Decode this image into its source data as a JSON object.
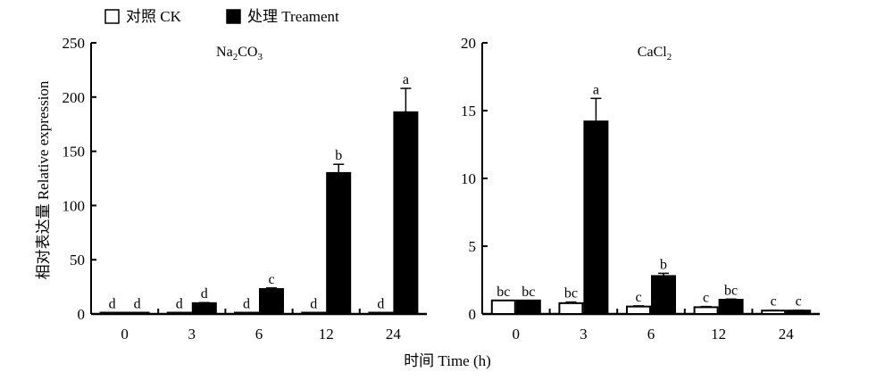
{
  "legend": [
    {
      "label": "对照 CK",
      "fill": "#ffffff"
    },
    {
      "label": "处理 Treament",
      "fill": "#000000"
    }
  ],
  "xlabel": "时间 Time (h)",
  "ylabel": "相对表达量 Relative expression",
  "chart_data": [
    {
      "type": "bar",
      "title_base": "Na",
      "title_sub1": "2",
      "title_mid": "CO",
      "title_sub2": "3",
      "categories": [
        "0",
        "3",
        "6",
        "12",
        "24"
      ],
      "ylim": [
        0,
        250
      ],
      "yticks": [
        "0",
        "50",
        "100",
        "150",
        "200",
        "250"
      ],
      "series": [
        {
          "values": [
            1,
            1,
            1,
            1,
            1
          ],
          "errors": [
            0,
            0,
            0,
            0,
            0
          ],
          "letters": [
            "d",
            "d",
            "d",
            "d",
            "d"
          ]
        },
        {
          "values": [
            1,
            10,
            23,
            130,
            186
          ],
          "errors": [
            0,
            0.5,
            1,
            8,
            22
          ],
          "letters": [
            "d",
            "d",
            "c",
            "b",
            "a"
          ]
        }
      ]
    },
    {
      "type": "bar",
      "title_base": "CaCl",
      "title_sub1": "2",
      "title_mid": "",
      "title_sub2": "",
      "categories": [
        "0",
        "3",
        "6",
        "12",
        "24"
      ],
      "ylim": [
        0,
        20
      ],
      "yticks": [
        "0",
        "5",
        "10",
        "15",
        "20"
      ],
      "series": [
        {
          "values": [
            1.0,
            0.8,
            0.55,
            0.5,
            0.25
          ],
          "errors": [
            0,
            0.08,
            0.05,
            0.05,
            0.03
          ],
          "letters": [
            "bc",
            "bc",
            "c",
            "c",
            "c"
          ]
        },
        {
          "values": [
            1.0,
            14.2,
            2.8,
            1.05,
            0.25
          ],
          "errors": [
            0,
            1.7,
            0.2,
            0.05,
            0.03
          ],
          "letters": [
            "bc",
            "a",
            "b",
            "bc",
            "c"
          ]
        }
      ]
    }
  ]
}
